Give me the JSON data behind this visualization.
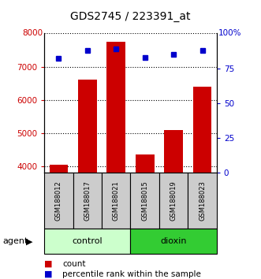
{
  "title": "GDS2745 / 223391_at",
  "samples": [
    "GSM188012",
    "GSM188017",
    "GSM188021",
    "GSM188015",
    "GSM188019",
    "GSM188023"
  ],
  "groups": [
    "control",
    "control",
    "control",
    "dioxin",
    "dioxin",
    "dioxin"
  ],
  "counts": [
    4050,
    6600,
    7750,
    4350,
    5100,
    6400
  ],
  "percentile_ranks": [
    82,
    88,
    89,
    83,
    85,
    88
  ],
  "bar_color": "#cc0000",
  "dot_color": "#0000cc",
  "ylim_left": [
    3800,
    8000
  ],
  "ylim_right": [
    0,
    100
  ],
  "yticks_left": [
    4000,
    5000,
    6000,
    7000
  ],
  "yticks_right": [
    0,
    25,
    50,
    75
  ],
  "ylabel_left_color": "#cc0000",
  "ylabel_right_color": "#0000cc",
  "grid_color": "#000000",
  "bar_bottom": 3800,
  "control_group_color": "#ccffcc",
  "dioxin_group_color": "#33cc33",
  "sample_box_color": "#cccccc",
  "legend_count_color": "#cc0000",
  "legend_pct_color": "#0000cc"
}
